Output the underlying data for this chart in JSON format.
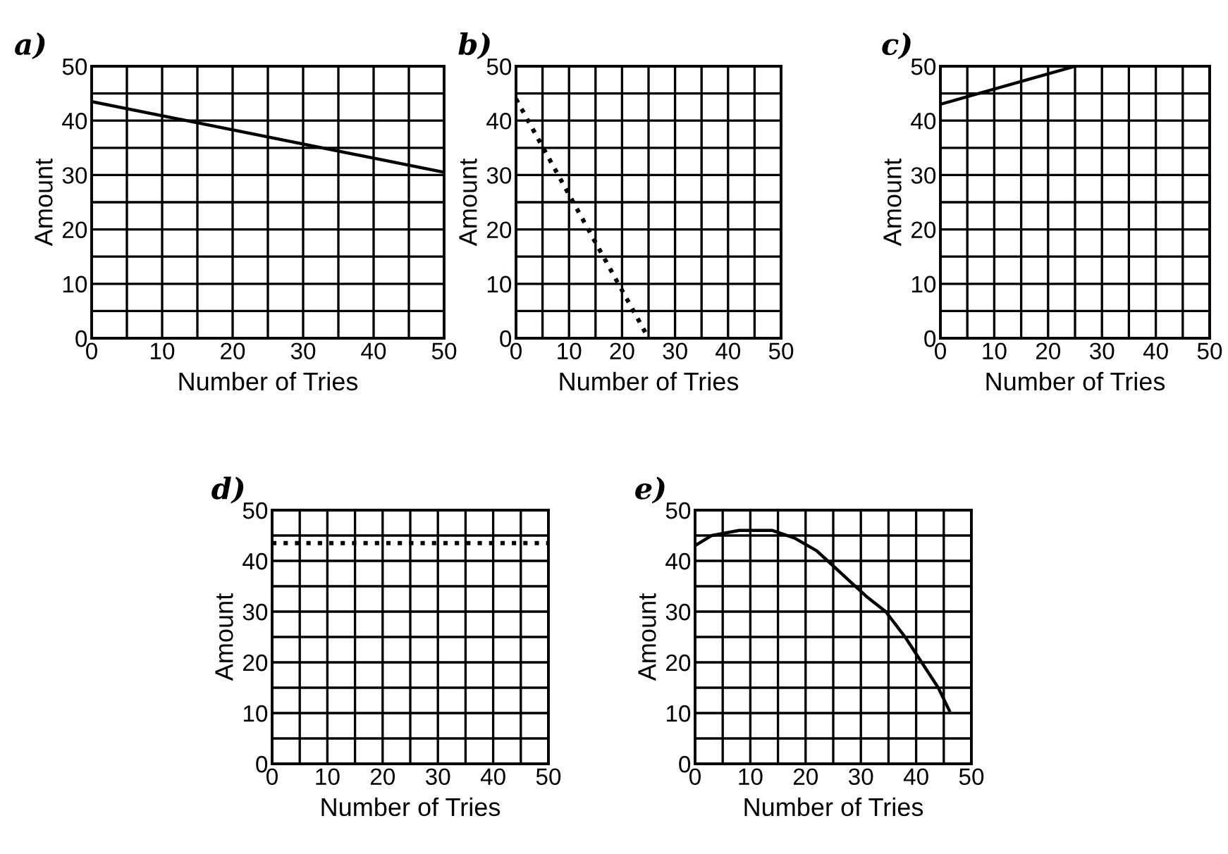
{
  "chart_data": [
    {
      "type": "line",
      "title": "a)",
      "xlabel": "Number of Tries",
      "ylabel": "Amount",
      "x": [
        0,
        50
      ],
      "values": [
        43.5,
        30.5
      ],
      "color": "#000000",
      "line_style": "solid",
      "xlim": [
        0,
        50
      ],
      "ylim": [
        0,
        50
      ],
      "xticks": [
        0,
        {
          "value": 5,
          "label": null
        },
        10,
        {
          "value": 15,
          "label": null
        },
        20,
        {
          "value": 25,
          "label": null
        },
        30,
        {
          "value": 35,
          "label": null
        },
        40,
        {
          "value": 45,
          "label": null
        },
        50
      ],
      "yticks": [
        0,
        {
          "value": 5,
          "label": null
        },
        10,
        {
          "value": 15,
          "label": null
        },
        20,
        {
          "value": 25,
          "label": null
        },
        30,
        {
          "value": 35,
          "label": null
        },
        40,
        {
          "value": 45,
          "label": null
        },
        50
      ],
      "grid": true
    },
    {
      "type": "line",
      "title": "b)",
      "xlabel": "Number of Tries",
      "ylabel": "Amount",
      "x": [
        0,
        25
      ],
      "values": [
        44,
        0
      ],
      "color": "#000000",
      "line_style": "dotted",
      "xlim": [
        0,
        50
      ],
      "ylim": [
        0,
        50
      ],
      "xticks": [
        0,
        {
          "value": 5,
          "label": null
        },
        10,
        {
          "value": 15,
          "label": null
        },
        20,
        {
          "value": 25,
          "label": null
        },
        30,
        {
          "value": 35,
          "label": null
        },
        40,
        {
          "value": 45,
          "label": null
        },
        50
      ],
      "yticks": [
        0,
        {
          "value": 5,
          "label": null
        },
        10,
        {
          "value": 15,
          "label": null
        },
        20,
        {
          "value": 25,
          "label": null
        },
        30,
        {
          "value": 35,
          "label": null
        },
        40,
        {
          "value": 45,
          "label": null
        },
        50
      ],
      "grid": true
    },
    {
      "type": "line",
      "title": "c)",
      "xlabel": "Number of Tries",
      "ylabel": "Amount",
      "x": [
        0,
        25
      ],
      "values": [
        43,
        50
      ],
      "color": "#000000",
      "line_style": "solid",
      "xlim": [
        0,
        50
      ],
      "ylim": [
        0,
        50
      ],
      "xticks": [
        0,
        {
          "value": 5,
          "label": null
        },
        10,
        {
          "value": 15,
          "label": null
        },
        20,
        {
          "value": 25,
          "label": null
        },
        30,
        {
          "value": 35,
          "label": null
        },
        40,
        {
          "value": 45,
          "label": null
        },
        50
      ],
      "yticks": [
        0,
        {
          "value": 5,
          "label": null
        },
        10,
        {
          "value": 15,
          "label": null
        },
        20,
        {
          "value": 25,
          "label": null
        },
        30,
        {
          "value": 35,
          "label": null
        },
        40,
        {
          "value": 45,
          "label": null
        },
        50
      ],
      "grid": true
    },
    {
      "type": "line",
      "title": "d)",
      "xlabel": "Number of Tries",
      "ylabel": "Amount",
      "x": [
        0,
        50
      ],
      "values": [
        43.5,
        43.5
      ],
      "color": "#000000",
      "line_style": "dotted",
      "xlim": [
        0,
        50
      ],
      "ylim": [
        0,
        50
      ],
      "xticks": [
        0,
        {
          "value": 5,
          "label": null
        },
        10,
        {
          "value": 15,
          "label": null
        },
        20,
        {
          "value": 25,
          "label": null
        },
        30,
        {
          "value": 35,
          "label": null
        },
        40,
        {
          "value": 45,
          "label": null
        },
        50
      ],
      "yticks": [
        0,
        {
          "value": 5,
          "label": null
        },
        10,
        {
          "value": 15,
          "label": null
        },
        20,
        {
          "value": 25,
          "label": null
        },
        30,
        {
          "value": 35,
          "label": null
        },
        40,
        {
          "value": 45,
          "label": null
        },
        50
      ],
      "grid": true
    },
    {
      "type": "line",
      "title": "e)",
      "xlabel": "Number of Tries",
      "ylabel": "Amount",
      "x": [
        0,
        3,
        8,
        14,
        18,
        22,
        24,
        28,
        31,
        34.5,
        38,
        41,
        44,
        46
      ],
      "values": [
        43,
        45,
        46,
        46,
        44.5,
        42,
        40,
        36,
        33,
        30,
        25,
        20,
        15,
        10.5
      ],
      "color": "#000000",
      "line_style": "solid",
      "xlim": [
        0,
        50
      ],
      "ylim": [
        0,
        50
      ],
      "xticks": [
        0,
        {
          "value": 5,
          "label": null
        },
        10,
        {
          "value": 15,
          "label": null
        },
        20,
        {
          "value": 25,
          "label": null
        },
        30,
        {
          "value": 35,
          "label": null
        },
        40,
        {
          "value": 45,
          "label": null
        },
        50
      ],
      "yticks": [
        0,
        {
          "value": 5,
          "label": null
        },
        10,
        {
          "value": 15,
          "label": null
        },
        20,
        {
          "value": 25,
          "label": null
        },
        30,
        {
          "value": 35,
          "label": null
        },
        40,
        {
          "value": 45,
          "label": null
        },
        50
      ],
      "grid": true
    }
  ]
}
